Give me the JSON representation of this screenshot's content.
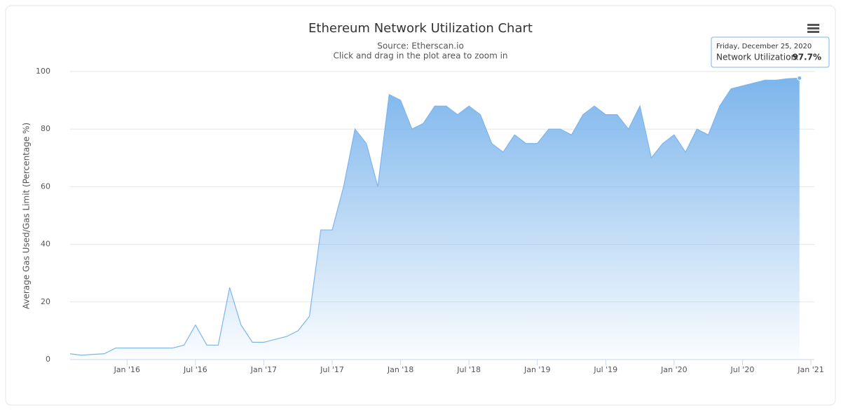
{
  "chart_data": {
    "type": "area",
    "title": "Ethereum Network Utilization Chart",
    "subtitle": "Source: Etherscan.io",
    "hint": "Click and drag in the plot area to zoom in",
    "y_label": "Average Gas Used/Gas Limit (Percentage %)",
    "x": [
      "2015-08",
      "2015-09",
      "2015-10",
      "2015-11",
      "2015-12",
      "2016-01",
      "2016-02",
      "2016-03",
      "2016-04",
      "2016-05",
      "2016-06",
      "2016-07",
      "2016-08",
      "2016-09",
      "2016-10",
      "2016-11",
      "2016-12",
      "2017-01",
      "2017-02",
      "2017-03",
      "2017-04",
      "2017-05",
      "2017-06",
      "2017-07",
      "2017-08",
      "2017-09",
      "2017-10",
      "2017-11",
      "2017-12",
      "2018-01",
      "2018-02",
      "2018-03",
      "2018-04",
      "2018-05",
      "2018-06",
      "2018-07",
      "2018-08",
      "2018-09",
      "2018-10",
      "2018-11",
      "2018-12",
      "2019-01",
      "2019-02",
      "2019-03",
      "2019-04",
      "2019-05",
      "2019-06",
      "2019-07",
      "2019-08",
      "2019-09",
      "2019-10",
      "2019-11",
      "2019-12",
      "2020-01",
      "2020-02",
      "2020-03",
      "2020-04",
      "2020-05",
      "2020-06",
      "2020-07",
      "2020-08",
      "2020-09",
      "2020-10",
      "2020-11",
      "2020-12"
    ],
    "series": [
      {
        "name": "Network Utilization",
        "color": "#7cb5ec",
        "values": [
          2,
          1.5,
          1.8,
          2,
          4,
          4,
          4,
          4,
          4,
          4,
          5,
          12,
          5,
          5,
          25,
          12,
          6,
          6,
          7,
          8,
          10,
          15,
          45,
          45,
          60,
          80,
          75,
          60,
          92,
          90,
          80,
          82,
          88,
          88,
          85,
          88,
          85,
          75,
          72,
          78,
          75,
          75,
          80,
          80,
          78,
          85,
          88,
          85,
          85,
          80,
          88,
          70,
          75,
          78,
          72,
          80,
          78,
          88,
          94,
          95,
          96,
          97,
          97,
          97.5,
          97.7
        ]
      }
    ],
    "xlim": [
      "2015-08",
      "2021-01"
    ],
    "xticks": [
      {
        "value": "2016-01",
        "label": "Jan '16"
      },
      {
        "value": "2016-07",
        "label": "Jul '16"
      },
      {
        "value": "2017-01",
        "label": "Jan '17"
      },
      {
        "value": "2017-07",
        "label": "Jul '17"
      },
      {
        "value": "2018-01",
        "label": "Jan '18"
      },
      {
        "value": "2018-07",
        "label": "Jul '18"
      },
      {
        "value": "2019-01",
        "label": "Jan '19"
      },
      {
        "value": "2019-07",
        "label": "Jul '19"
      },
      {
        "value": "2020-01",
        "label": "Jan '20"
      },
      {
        "value": "2020-07",
        "label": "Jul '20"
      },
      {
        "value": "2021-01",
        "label": "Jan '21"
      }
    ],
    "ylim": [
      0,
      100
    ],
    "yticks": [
      0,
      20,
      40,
      60,
      80,
      100
    ],
    "grid": true,
    "tooltip": {
      "title": "Friday, December 25, 2020",
      "name": "Network Utilization:",
      "value": 97.7,
      "value_label": "97.7%"
    }
  }
}
